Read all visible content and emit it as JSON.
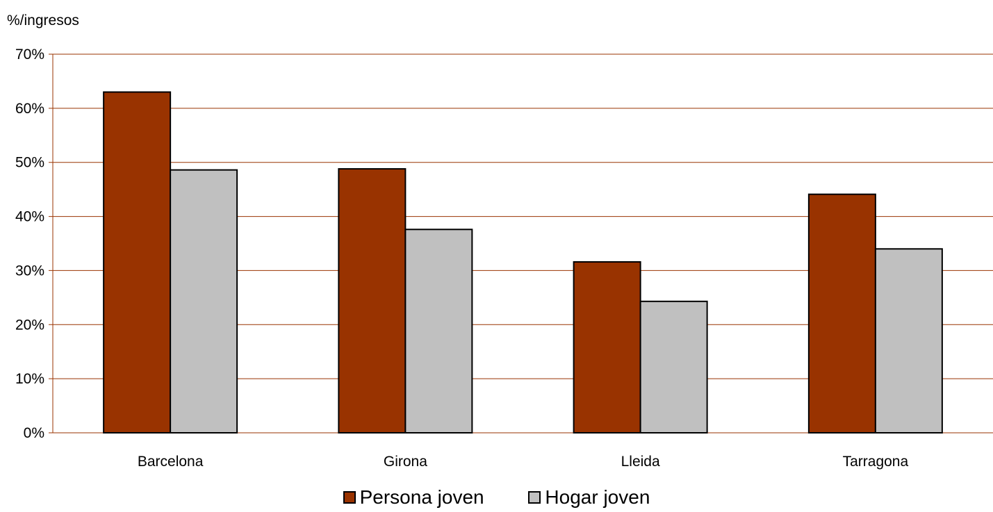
{
  "chart_data": {
    "type": "bar",
    "ylabel": "%/ingresos",
    "xlabel": "",
    "title": "",
    "categories": [
      "Barcelona",
      "Girona",
      "Lleida",
      "Tarragona"
    ],
    "ylim": [
      0,
      70
    ],
    "yticks": [
      0,
      10,
      20,
      30,
      40,
      50,
      60,
      70
    ],
    "ytick_labels": [
      "0%",
      "10%",
      "20%",
      "30%",
      "40%",
      "50%",
      "60%",
      "70%"
    ],
    "grid": true,
    "legend_position": "bottom",
    "series": [
      {
        "name": "Persona joven",
        "color": "#993300",
        "values": [
          63.0,
          48.8,
          31.6,
          44.1
        ]
      },
      {
        "name": "Hogar joven",
        "color": "#C0C0C0",
        "values": [
          48.6,
          37.6,
          24.3,
          34.0
        ]
      }
    ],
    "colors": {
      "gridline": "#993300",
      "bar_edge": "#000000"
    }
  }
}
